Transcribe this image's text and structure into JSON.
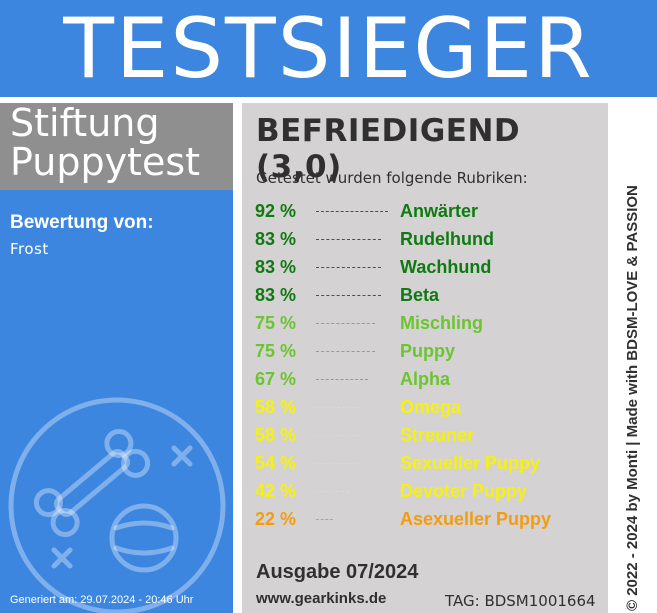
{
  "banner": {
    "title": "TESTSIEGER"
  },
  "organization": {
    "name": "Stiftung\nPuppytest"
  },
  "rating": {
    "label": "Bewertung von:",
    "rater": "Frost"
  },
  "footer_left": {
    "generated": "Generiert am: 29.07.2024 - 20:46 Uhr"
  },
  "result": {
    "grade": "BEFRIEDIGEND (3,0)",
    "intro": "Getestet wurden folgende Rubriken:",
    "categories": [
      {
        "percent": "92 %",
        "name": "Anwärter",
        "value": 92,
        "color": "#0f7a12"
      },
      {
        "percent": "83 %",
        "name": "Rudelhund",
        "value": 83,
        "color": "#0f7a12"
      },
      {
        "percent": "83 %",
        "name": "Wachhund",
        "value": 83,
        "color": "#0f7a12"
      },
      {
        "percent": "83 %",
        "name": "Beta",
        "value": 83,
        "color": "#0f7a12"
      },
      {
        "percent": "75 %",
        "name": "Mischling",
        "value": 75,
        "color": "#6cc530"
      },
      {
        "percent": "75 %",
        "name": "Puppy",
        "value": 75,
        "color": "#6cc530"
      },
      {
        "percent": "67 %",
        "name": "Alpha",
        "value": 67,
        "color": "#6cc530"
      },
      {
        "percent": "58 %",
        "name": "Omega",
        "value": 58,
        "color": "#f7f20a"
      },
      {
        "percent": "58 %",
        "name": "Streuner",
        "value": 58,
        "color": "#f7f20a"
      },
      {
        "percent": "54 %",
        "name": "Sexueller Puppy",
        "value": 54,
        "color": "#f7f20a"
      },
      {
        "percent": "42 %",
        "name": "Devoter Puppy",
        "value": 42,
        "color": "#f7f20a"
      },
      {
        "percent": "22 %",
        "name": "Asexueller Puppy",
        "value": 22,
        "color": "#f39c12"
      }
    ],
    "issue": "Ausgabe 07/2024",
    "website": "www.gearkinks.de",
    "tag": "TAG: BDSM1001664"
  },
  "credit": "© 2022 - 2024 by Monti | Made with BDSM-LOVE & PASSION",
  "colors": {
    "blue": "#3d86e0",
    "grey": "#8f8f8f",
    "panel": "#d4d2d3",
    "text": "#303030"
  },
  "icons": {
    "emblem": "bone-and-ball-icon"
  }
}
